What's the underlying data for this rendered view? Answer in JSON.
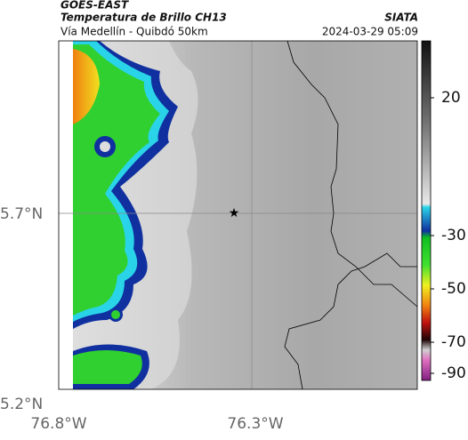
{
  "header": {
    "source": "GOES-EAST",
    "product": "Temperatura de Brillo CH13",
    "region": "Vía Medellín - Quibdó 50km",
    "agency": "SIATA",
    "timestamp": "2024-03-29 05:09"
  },
  "map": {
    "lat_labels": [
      "5.7°N",
      "5.2°N"
    ],
    "lon_labels": [
      "76.8°W",
      "76.3°W"
    ]
  },
  "colorbar": {
    "ticks": [
      "20",
      "-30",
      "-50",
      "-70",
      "-90"
    ]
  }
}
